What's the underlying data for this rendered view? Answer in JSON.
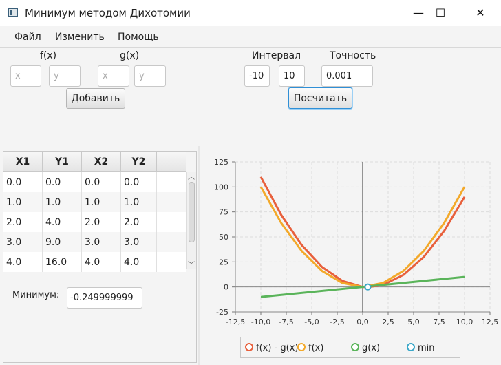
{
  "window": {
    "title": "Минимум методом Дихотомии",
    "minimize": "—",
    "maximize": "☐",
    "close": "✕"
  },
  "menu": [
    "Файл",
    "Изменить",
    "Помощь"
  ],
  "inputs": {
    "fx_label": "f(x)",
    "gx_label": "g(x)",
    "fx_x_placeholder": "x",
    "fx_y_placeholder": "y",
    "gx_x_placeholder": "x",
    "gx_y_placeholder": "y",
    "add_button": "Добавить",
    "interval_label": "Интервал",
    "interval_from": "-10",
    "interval_to": "10",
    "precision_label": "Точность",
    "precision": "0.001",
    "compute_button": "Посчитать"
  },
  "table": {
    "headers": [
      "X1",
      "Y1",
      "X2",
      "Y2"
    ],
    "rows": [
      [
        "0.0",
        "0.0",
        "0.0",
        "0.0"
      ],
      [
        "1.0",
        "1.0",
        "1.0",
        "1.0"
      ],
      [
        "2.0",
        "4.0",
        "2.0",
        "2.0"
      ],
      [
        "3.0",
        "9.0",
        "3.0",
        "3.0"
      ],
      [
        "4.0",
        "16.0",
        "4.0",
        "4.0"
      ]
    ],
    "scroll_up": "︿",
    "scroll_down": "﹀"
  },
  "result": {
    "label": "Минимум:",
    "value": "-0.249999999"
  },
  "chart_data": {
    "type": "line",
    "xlim": [
      -12.5,
      12.5
    ],
    "ylim": [
      -25,
      125
    ],
    "x_ticks": [
      "-12,5",
      "-10,0",
      "-7,5",
      "-5,0",
      "-2,5",
      "0,0",
      "2,5",
      "5,0",
      "7,5",
      "10,0",
      "12,5"
    ],
    "y_ticks": [
      "125",
      "100",
      "75",
      "50",
      "25",
      "0",
      "-25"
    ],
    "grid": true,
    "legend_position": "bottom",
    "series": [
      {
        "name": "f(x) - g(x)",
        "color": "#e8603c",
        "x": [
          -10,
          -8,
          -6,
          -4,
          -2,
          0,
          0.5,
          2,
          4,
          6,
          8,
          10
        ],
        "y": [
          110,
          72,
          42,
          20,
          6,
          0,
          -0.25,
          2,
          12,
          30,
          56,
          90
        ]
      },
      {
        "name": "f(x)",
        "color": "#f3a92a",
        "x": [
          -10,
          -8,
          -6,
          -4,
          -2,
          0,
          2,
          4,
          6,
          8,
          10
        ],
        "y": [
          100,
          64,
          36,
          16,
          4,
          0,
          4,
          16,
          36,
          64,
          100
        ]
      },
      {
        "name": "g(x)",
        "color": "#5ab45a",
        "x": [
          -10,
          10
        ],
        "y": [
          -10,
          10
        ]
      },
      {
        "name": "min",
        "color": "#3aa7c8",
        "x": [
          0.5
        ],
        "y": [
          0
        ],
        "marker_only": true
      }
    ]
  }
}
